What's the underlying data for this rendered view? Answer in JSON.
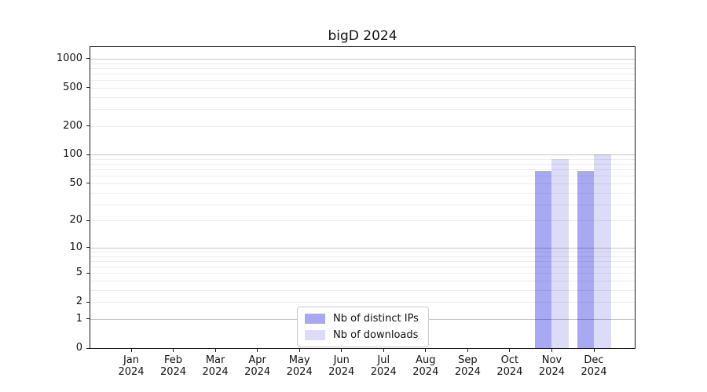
{
  "chart_data": {
    "type": "bar",
    "title": "bigD 2024",
    "xlabel": "",
    "ylabel": "",
    "yscale": "symlog-log1p",
    "ylim": [
      0,
      1323
    ],
    "y_ticks": [
      0,
      1,
      2,
      5,
      10,
      20,
      50,
      100,
      200,
      500,
      1000
    ],
    "grid": "horizontal, minor log lines light + decade lines darker",
    "legend_position": "bottom-center-inside",
    "categories": [
      {
        "month": "Jan",
        "year": "2024"
      },
      {
        "month": "Feb",
        "year": "2024"
      },
      {
        "month": "Mar",
        "year": "2024"
      },
      {
        "month": "Apr",
        "year": "2024"
      },
      {
        "month": "May",
        "year": "2024"
      },
      {
        "month": "Jun",
        "year": "2024"
      },
      {
        "month": "Jul",
        "year": "2024"
      },
      {
        "month": "Aug",
        "year": "2024"
      },
      {
        "month": "Sep",
        "year": "2024"
      },
      {
        "month": "Oct",
        "year": "2024"
      },
      {
        "month": "Nov",
        "year": "2024"
      },
      {
        "month": "Dec",
        "year": "2024"
      }
    ],
    "series": [
      {
        "name": "Nb of distinct IPs",
        "color": "#a9a9f3",
        "values": [
          0,
          0,
          0,
          0,
          0,
          0,
          0,
          0,
          0,
          0,
          68,
          68
        ]
      },
      {
        "name": "Nb of downloads",
        "color": "#dcdcf8",
        "values": [
          0,
          0,
          0,
          0,
          0,
          0,
          0,
          0,
          0,
          0,
          90,
          101
        ]
      }
    ]
  }
}
